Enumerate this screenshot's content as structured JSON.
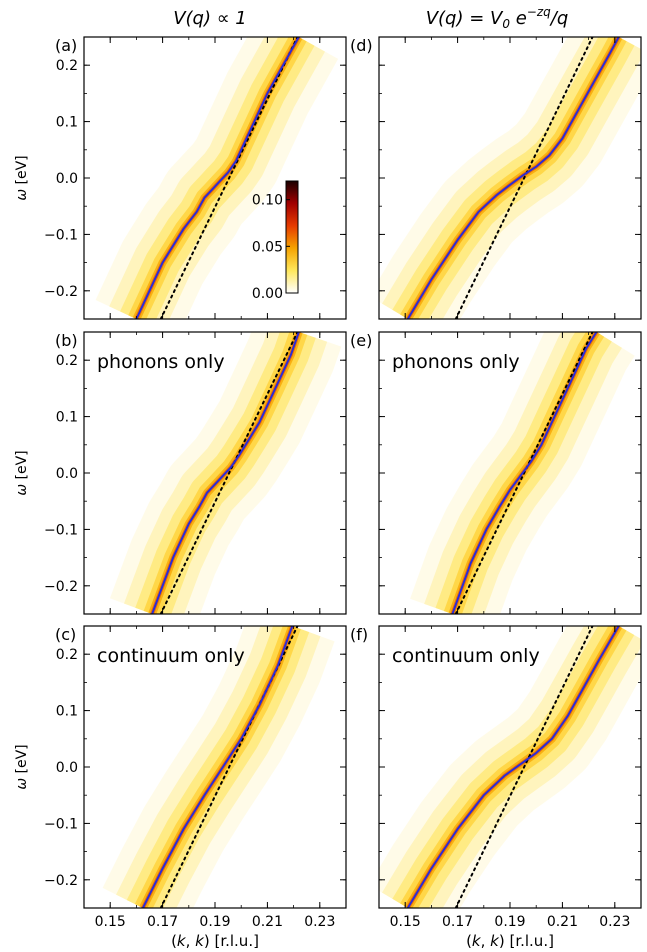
{
  "column_titles": [
    "V(q) ∝ 1",
    "V(q) = V0 e^{−zq}/q"
  ],
  "colorbar": {
    "ticks": [
      "0.00",
      "0.05",
      "0.10"
    ],
    "range": [
      0,
      0.12
    ],
    "colors": [
      "#ffffff",
      "#ffe85c",
      "#f5a300",
      "#e63b00",
      "#a10000",
      "#1a0000"
    ]
  },
  "chart_data": [
    {
      "type": "heatmap",
      "panel": "(a)",
      "label": "",
      "column": 0,
      "row": 0,
      "xlim": [
        0.14,
        0.24
      ],
      "ylim": [
        -0.25,
        0.25
      ],
      "xlabel": "",
      "ylabel": "ω [eV]",
      "xticks": [
        "0.15",
        "0.17",
        "0.19",
        "0.21",
        "0.23"
      ],
      "yticks": [
        "−0.2",
        "−0.1",
        "0.0",
        "0.1",
        "0.2"
      ],
      "bare_dispersion": {
        "x": [
          0.1693,
          0.2215
        ],
        "y": [
          -0.25,
          0.25
        ]
      },
      "renormalized": {
        "x": [
          0.16,
          0.17,
          0.178,
          0.183,
          0.186,
          0.189,
          0.192,
          0.195,
          0.198,
          0.201,
          0.204,
          0.21,
          0.216,
          0.222
        ],
        "y": [
          -0.25,
          -0.15,
          -0.09,
          -0.06,
          -0.035,
          -0.02,
          -0.005,
          0.01,
          0.03,
          0.06,
          0.09,
          0.15,
          0.2,
          0.25
        ]
      }
    },
    {
      "type": "heatmap",
      "panel": "(b)",
      "label": "phonons only",
      "column": 0,
      "row": 1,
      "xlim": [
        0.14,
        0.24
      ],
      "ylim": [
        -0.25,
        0.25
      ],
      "xlabel": "",
      "ylabel": "ω [eV]",
      "xticks": [
        "0.15",
        "0.17",
        "0.19",
        "0.21",
        "0.23"
      ],
      "yticks": [
        "−0.2",
        "−0.1",
        "0.0",
        "0.1",
        "0.2"
      ],
      "bare_dispersion": {
        "x": [
          0.1693,
          0.2215
        ],
        "y": [
          -0.25,
          0.25
        ]
      },
      "renormalized": {
        "x": [
          0.166,
          0.174,
          0.18,
          0.184,
          0.187,
          0.19,
          0.193,
          0.196,
          0.199,
          0.203,
          0.207,
          0.213,
          0.219,
          0.222
        ],
        "y": [
          -0.25,
          -0.15,
          -0.09,
          -0.06,
          -0.035,
          -0.02,
          -0.005,
          0.01,
          0.03,
          0.06,
          0.09,
          0.15,
          0.21,
          0.25
        ]
      }
    },
    {
      "type": "heatmap",
      "panel": "(c)",
      "label": "continuum only",
      "column": 0,
      "row": 2,
      "xlim": [
        0.14,
        0.24
      ],
      "ylim": [
        -0.25,
        0.25
      ],
      "xlabel": "(k, k) [r.l.u.]",
      "ylabel": "ω [eV]",
      "xticks": [
        "0.15",
        "0.17",
        "0.19",
        "0.21",
        "0.23"
      ],
      "yticks": [
        "−0.2",
        "−0.1",
        "0.0",
        "0.1",
        "0.2"
      ],
      "bare_dispersion": {
        "x": [
          0.1693,
          0.2215
        ],
        "y": [
          -0.25,
          0.25
        ]
      },
      "renormalized": {
        "x": [
          0.1625,
          0.17,
          0.178,
          0.186,
          0.193,
          0.2,
          0.207,
          0.214,
          0.2195
        ],
        "y": [
          -0.25,
          -0.18,
          -0.11,
          -0.05,
          0.0,
          0.05,
          0.11,
          0.18,
          0.25
        ]
      }
    },
    {
      "type": "heatmap",
      "panel": "(d)",
      "label": "",
      "column": 1,
      "row": 0,
      "xlim": [
        0.14,
        0.24
      ],
      "ylim": [
        -0.25,
        0.25
      ],
      "xlabel": "",
      "ylabel": "",
      "xticks": [
        "0.15",
        "0.17",
        "0.19",
        "0.21",
        "0.23"
      ],
      "yticks": [
        "−0.2",
        "−0.1",
        "0.0",
        "0.1",
        "0.2"
      ],
      "bare_dispersion": {
        "x": [
          0.1693,
          0.2215
        ],
        "y": [
          -0.25,
          0.25
        ]
      },
      "renormalized": {
        "x": [
          0.151,
          0.16,
          0.17,
          0.178,
          0.185,
          0.19,
          0.195,
          0.2,
          0.205,
          0.21,
          0.216,
          0.222,
          0.228,
          0.2315
        ],
        "y": [
          -0.25,
          -0.18,
          -0.11,
          -0.06,
          -0.03,
          -0.012,
          0.005,
          0.02,
          0.04,
          0.07,
          0.12,
          0.17,
          0.22,
          0.25
        ]
      }
    },
    {
      "type": "heatmap",
      "panel": "(e)",
      "label": "phonons only",
      "column": 1,
      "row": 1,
      "xlim": [
        0.14,
        0.24
      ],
      "ylim": [
        -0.25,
        0.25
      ],
      "xlabel": "",
      "ylabel": "",
      "xticks": [
        "0.15",
        "0.17",
        "0.19",
        "0.21",
        "0.23"
      ],
      "yticks": [
        "−0.2",
        "−0.1",
        "0.0",
        "0.1",
        "0.2"
      ],
      "bare_dispersion": {
        "x": [
          0.1693,
          0.2215
        ],
        "y": [
          -0.25,
          0.25
        ]
      },
      "renormalized": {
        "x": [
          0.168,
          0.175,
          0.181,
          0.186,
          0.19,
          0.194,
          0.198,
          0.202,
          0.207,
          0.213,
          0.219,
          0.223
        ],
        "y": [
          -0.25,
          -0.16,
          -0.1,
          -0.06,
          -0.03,
          -0.005,
          0.02,
          0.05,
          0.1,
          0.16,
          0.22,
          0.25
        ]
      }
    },
    {
      "type": "heatmap",
      "panel": "(f)",
      "label": "continuum only",
      "column": 1,
      "row": 2,
      "xlim": [
        0.14,
        0.24
      ],
      "ylim": [
        -0.25,
        0.25
      ],
      "xlabel": "(k, k) [r.l.u.]",
      "ylabel": "",
      "xticks": [
        "0.15",
        "0.17",
        "0.19",
        "0.21",
        "0.23"
      ],
      "yticks": [
        "−0.2",
        "−0.1",
        "0.0",
        "0.1",
        "0.2"
      ],
      "bare_dispersion": {
        "x": [
          0.1693,
          0.2215
        ],
        "y": [
          -0.25,
          0.25
        ]
      },
      "renormalized": {
        "x": [
          0.151,
          0.16,
          0.17,
          0.18,
          0.188,
          0.194,
          0.2,
          0.206,
          0.212,
          0.218,
          0.224,
          0.2315
        ],
        "y": [
          -0.25,
          -0.18,
          -0.11,
          -0.05,
          -0.015,
          0.005,
          0.025,
          0.05,
          0.09,
          0.14,
          0.19,
          0.25
        ]
      }
    }
  ]
}
